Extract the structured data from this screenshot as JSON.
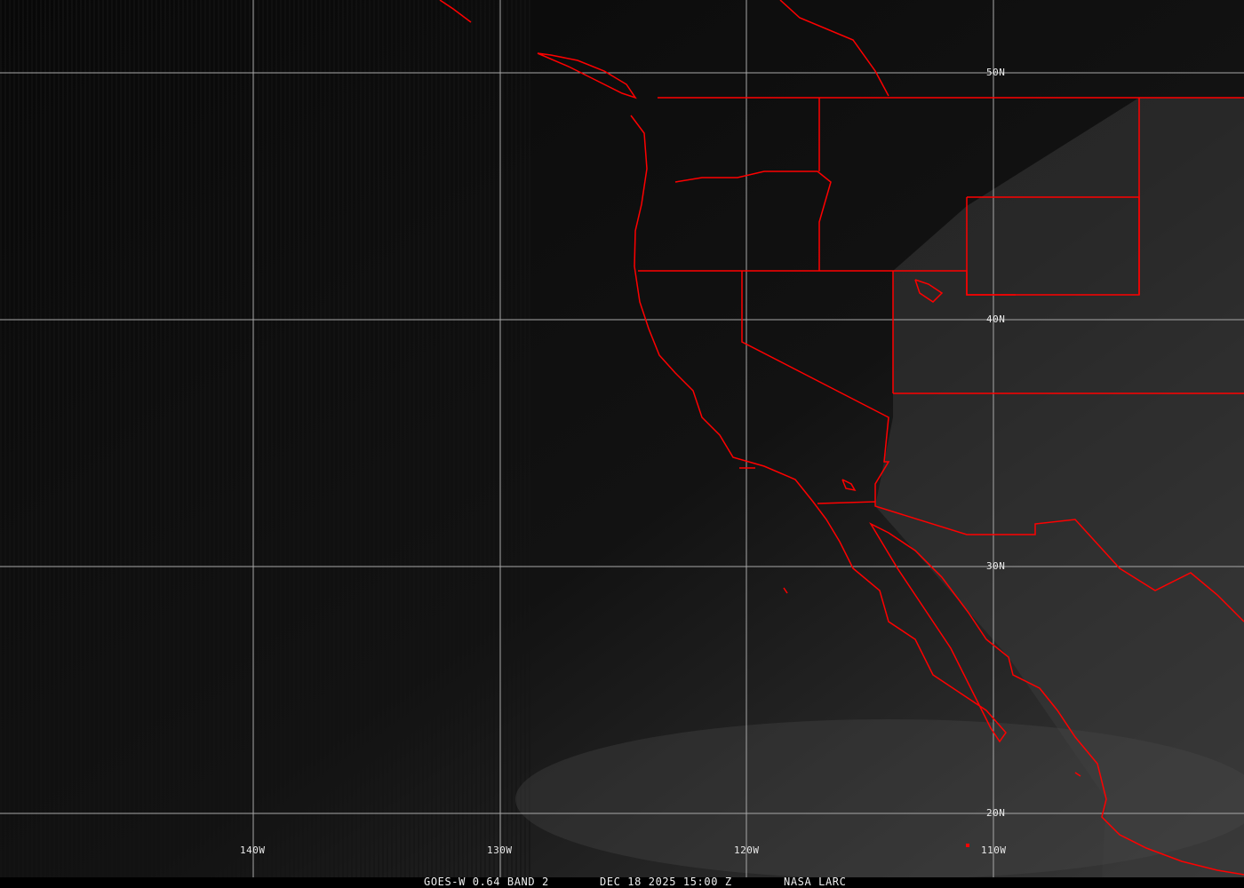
{
  "image": {
    "satellite": "GOES-W",
    "caption": {
      "product": "GOES-W 0.64 BAND 2",
      "datetime": "DEC 18 2025 15:00 Z",
      "source": "NASA LARC"
    },
    "latitude_labels": [
      "50N",
      "40N",
      "30N",
      "20N"
    ],
    "longitude_labels": [
      "140W",
      "130W",
      "120W",
      "110W"
    ],
    "colors": {
      "borders": "#ff0000",
      "grid": "#b0b0b0",
      "ocean": "#0a0a0a",
      "land": "#2e2e2e"
    }
  }
}
